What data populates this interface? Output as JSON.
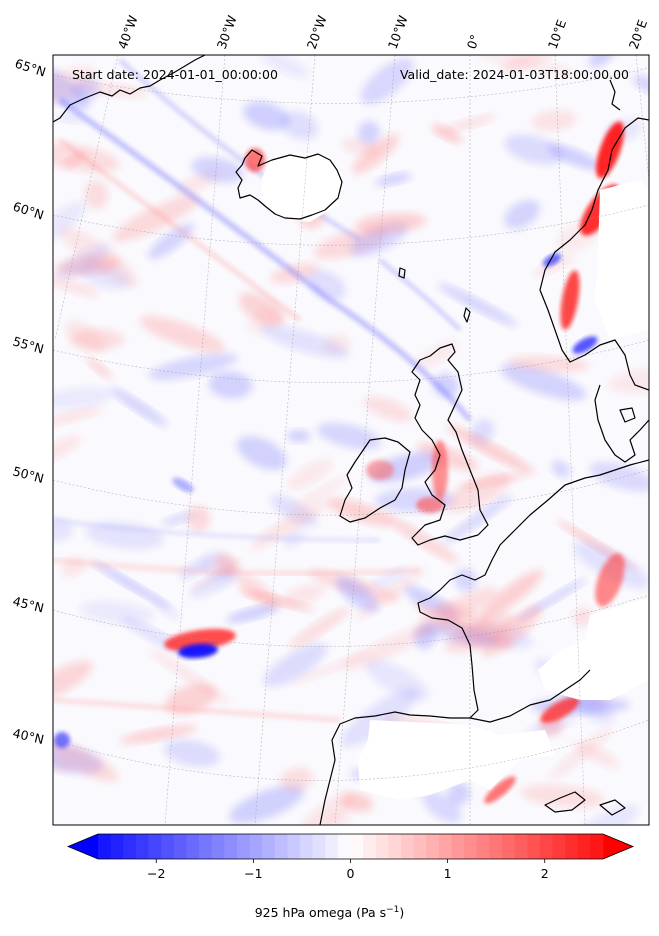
{
  "header": {
    "start_label": "Start date: 2024-01-01_00:00:00",
    "valid_label": "Valid_date: 2024-01-03T18:00:00.00"
  },
  "lon_labels": [
    "40°W",
    "30°W",
    "20°W",
    "10°W",
    "0°",
    "10°E",
    "20°E"
  ],
  "lat_labels": [
    "65°N",
    "60°N",
    "55°N",
    "50°N",
    "45°N",
    "40°N"
  ],
  "colorbar": {
    "title": "925 hPa omega (Pa s",
    "title_unit_sup": "−1",
    "title_close": ")",
    "ticks": [
      "−2",
      "−1",
      "0",
      "1",
      "2"
    ],
    "tick_values": [
      -2,
      -1,
      0,
      1,
      2
    ],
    "range": [
      -2.6,
      2.6
    ],
    "colormap": "bwr",
    "low_color": "#0000ff",
    "mid_color": "#ffffff",
    "high_color": "#ff0000",
    "extend": "both"
  },
  "map": {
    "projection": "Lambert conformal",
    "field": "925 hPa omega",
    "gridlines": "dotted grey",
    "land_mask": "white where surface above 925 hPa"
  }
}
